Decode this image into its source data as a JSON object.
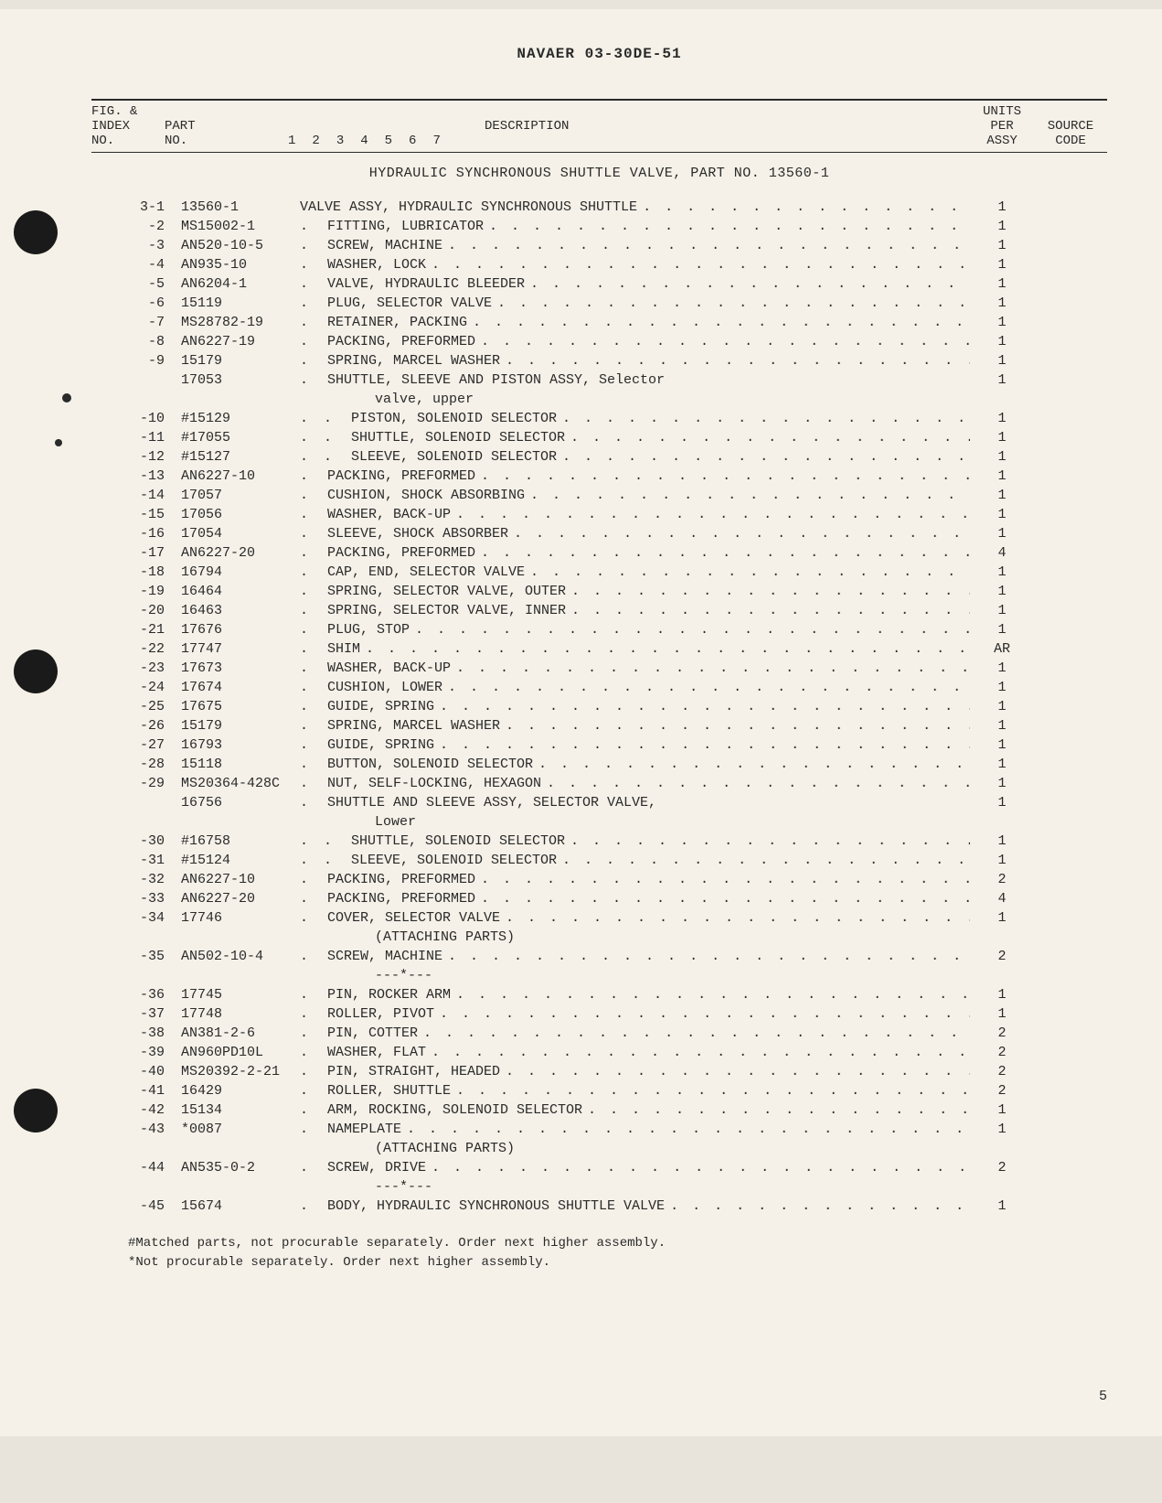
{
  "doc_id": "NAVAER 03-30DE-51",
  "page_number": "5",
  "headers": {
    "index_l1": "FIG. &",
    "index_l2": "INDEX",
    "index_l3": "NO.",
    "part_l1": "PART",
    "part_l2": "NO.",
    "desc": "DESCRIPTION",
    "indent_nums": [
      "1",
      "2",
      "3",
      "4",
      "5",
      "6",
      "7"
    ],
    "units_l1": "UNITS",
    "units_l2": "PER",
    "units_l3": "ASSY",
    "source_l1": "SOURCE",
    "source_l2": "CODE"
  },
  "section_title": "HYDRAULIC SYNCHRONOUS SHUTTLE VALVE, PART NO. 13560-1",
  "rows": [
    {
      "idx": "3-1",
      "part": "13560-1",
      "indent": 0,
      "desc": "VALVE ASSY, HYDRAULIC SYNCHRONOUS SHUTTLE",
      "units": "1",
      "dots": true
    },
    {
      "idx": "-2",
      "part": "MS15002-1",
      "indent": 1,
      "desc": "FITTING, LUBRICATOR",
      "units": "1",
      "dots": true
    },
    {
      "idx": "-3",
      "part": "AN520-10-5",
      "indent": 1,
      "desc": "SCREW, MACHINE",
      "units": "1",
      "dots": true
    },
    {
      "idx": "-4",
      "part": "AN935-10",
      "indent": 1,
      "desc": "WASHER, LOCK",
      "units": "1",
      "dots": true
    },
    {
      "idx": "-5",
      "part": "AN6204-1",
      "indent": 1,
      "desc": "VALVE, HYDRAULIC BLEEDER",
      "units": "1",
      "dots": true
    },
    {
      "idx": "-6",
      "part": "15119",
      "indent": 1,
      "desc": "PLUG, SELECTOR VALVE",
      "units": "1",
      "dots": true
    },
    {
      "idx": "-7",
      "part": "MS28782-19",
      "indent": 1,
      "desc": "RETAINER, PACKING",
      "units": "1",
      "dots": true
    },
    {
      "idx": "-8",
      "part": "AN6227-19",
      "indent": 1,
      "desc": "PACKING, PREFORMED",
      "units": "1",
      "dots": true
    },
    {
      "idx": "-9",
      "part": "15179",
      "indent": 1,
      "desc": "SPRING, MARCEL WASHER",
      "units": "1",
      "dots": true
    },
    {
      "idx": "",
      "part": "17053",
      "indent": 1,
      "desc": "SHUTTLE, SLEEVE AND PISTON ASSY, Selector",
      "units": "1",
      "dots": false,
      "cont": "valve, upper"
    },
    {
      "idx": "-10",
      "part": "#15129",
      "indent": 2,
      "desc": "PISTON, SOLENOID SELECTOR",
      "units": "1",
      "dots": true
    },
    {
      "idx": "-11",
      "part": "#17055",
      "indent": 2,
      "desc": "SHUTTLE, SOLENOID SELECTOR",
      "units": "1",
      "dots": true
    },
    {
      "idx": "-12",
      "part": "#15127",
      "indent": 2,
      "desc": "SLEEVE, SOLENOID SELECTOR",
      "units": "1",
      "dots": true
    },
    {
      "idx": "-13",
      "part": "AN6227-10",
      "indent": 1,
      "desc": "PACKING, PREFORMED",
      "units": "1",
      "dots": true
    },
    {
      "idx": "-14",
      "part": "17057",
      "indent": 1,
      "desc": "CUSHION, SHOCK ABSORBING",
      "units": "1",
      "dots": true
    },
    {
      "idx": "-15",
      "part": "17056",
      "indent": 1,
      "desc": "WASHER, BACK-UP",
      "units": "1",
      "dots": true
    },
    {
      "idx": "-16",
      "part": "17054",
      "indent": 1,
      "desc": "SLEEVE, SHOCK ABSORBER",
      "units": "1",
      "dots": true
    },
    {
      "idx": "-17",
      "part": "AN6227-20",
      "indent": 1,
      "desc": "PACKING, PREFORMED",
      "units": "4",
      "dots": true
    },
    {
      "idx": "-18",
      "part": "16794",
      "indent": 1,
      "desc": "CAP, END, SELECTOR VALVE",
      "units": "1",
      "dots": true
    },
    {
      "idx": "-19",
      "part": "16464",
      "indent": 1,
      "desc": "SPRING, SELECTOR VALVE, OUTER",
      "units": "1",
      "dots": true
    },
    {
      "idx": "-20",
      "part": "16463",
      "indent": 1,
      "desc": "SPRING, SELECTOR VALVE, INNER",
      "units": "1",
      "dots": true
    },
    {
      "idx": "-21",
      "part": "17676",
      "indent": 1,
      "desc": "PLUG, STOP",
      "units": "1",
      "dots": true
    },
    {
      "idx": "-22",
      "part": "17747",
      "indent": 1,
      "desc": "SHIM",
      "units": "AR",
      "dots": true
    },
    {
      "idx": "-23",
      "part": "17673",
      "indent": 1,
      "desc": "WASHER, BACK-UP",
      "units": "1",
      "dots": true
    },
    {
      "idx": "-24",
      "part": "17674",
      "indent": 1,
      "desc": "CUSHION, LOWER",
      "units": "1",
      "dots": true
    },
    {
      "idx": "-25",
      "part": "17675",
      "indent": 1,
      "desc": "GUIDE, SPRING",
      "units": "1",
      "dots": true
    },
    {
      "idx": "-26",
      "part": "15179",
      "indent": 1,
      "desc": "SPRING, MARCEL WASHER",
      "units": "1",
      "dots": true
    },
    {
      "idx": "-27",
      "part": "16793",
      "indent": 1,
      "desc": "GUIDE, SPRING",
      "units": "1",
      "dots": true
    },
    {
      "idx": "-28",
      "part": "15118",
      "indent": 1,
      "desc": "BUTTON, SOLENOID SELECTOR",
      "units": "1",
      "dots": true
    },
    {
      "idx": "-29",
      "part": "MS20364-428C",
      "indent": 1,
      "desc": "NUT, SELF-LOCKING, HEXAGON",
      "units": "1",
      "dots": true
    },
    {
      "idx": "",
      "part": "16756",
      "indent": 1,
      "desc": "SHUTTLE AND SLEEVE ASSY, SELECTOR VALVE,",
      "units": "1",
      "dots": false,
      "cont": "Lower"
    },
    {
      "idx": "-30",
      "part": "#16758",
      "indent": 2,
      "desc": "SHUTTLE, SOLENOID SELECTOR",
      "units": "1",
      "dots": true
    },
    {
      "idx": "-31",
      "part": "#15124",
      "indent": 2,
      "desc": "SLEEVE, SOLENOID SELECTOR",
      "units": "1",
      "dots": true
    },
    {
      "idx": "-32",
      "part": "AN6227-10",
      "indent": 1,
      "desc": "PACKING, PREFORMED",
      "units": "2",
      "dots": true
    },
    {
      "idx": "-33",
      "part": "AN6227-20",
      "indent": 1,
      "desc": "PACKING, PREFORMED",
      "units": "4",
      "dots": true
    },
    {
      "idx": "-34",
      "part": "17746",
      "indent": 1,
      "desc": "COVER, SELECTOR VALVE",
      "units": "1",
      "dots": true,
      "attach": "(ATTACHING PARTS)"
    },
    {
      "idx": "-35",
      "part": "AN502-10-4",
      "indent": 1,
      "desc": "SCREW, MACHINE",
      "units": "2",
      "dots": true,
      "attach": "---*---"
    },
    {
      "idx": "-36",
      "part": "17745",
      "indent": 1,
      "desc": "PIN, ROCKER ARM",
      "units": "1",
      "dots": true
    },
    {
      "idx": "-37",
      "part": "17748",
      "indent": 1,
      "desc": "ROLLER, PIVOT",
      "units": "1",
      "dots": true
    },
    {
      "idx": "-38",
      "part": "AN381-2-6",
      "indent": 1,
      "desc": "PIN, COTTER",
      "units": "2",
      "dots": true
    },
    {
      "idx": "-39",
      "part": "AN960PD10L",
      "indent": 1,
      "desc": "WASHER, FLAT",
      "units": "2",
      "dots": true
    },
    {
      "idx": "-40",
      "part": "MS20392-2-21",
      "indent": 1,
      "desc": "PIN, STRAIGHT, HEADED",
      "units": "2",
      "dots": true
    },
    {
      "idx": "-41",
      "part": "16429",
      "indent": 1,
      "desc": "ROLLER, SHUTTLE",
      "units": "2",
      "dots": true
    },
    {
      "idx": "-42",
      "part": "15134",
      "indent": 1,
      "desc": "ARM, ROCKING, SOLENOID SELECTOR",
      "units": "1",
      "dots": true
    },
    {
      "idx": "-43",
      "part": "*0087",
      "indent": 1,
      "desc": "NAMEPLATE",
      "units": "1",
      "dots": true,
      "attach": "(ATTACHING PARTS)"
    },
    {
      "idx": "-44",
      "part": "AN535-0-2",
      "indent": 1,
      "desc": "SCREW, DRIVE",
      "units": "2",
      "dots": true,
      "attach": "---*---"
    },
    {
      "idx": "-45",
      "part": "15674",
      "indent": 1,
      "desc": "BODY, HYDRAULIC SYNCHRONOUS SHUTTLE VALVE",
      "units": "1",
      "dots": true
    }
  ],
  "footnotes": [
    "#Matched parts, not procurable separately. Order next higher assembly.",
    "*Not procurable separately. Order next higher assembly."
  ],
  "indent_dot": ".",
  "dot_leader": ". . . . . . . . . . . . . . . . . . . . . . . . . . . . . . . . . . . . . . . . . . . . . . ."
}
